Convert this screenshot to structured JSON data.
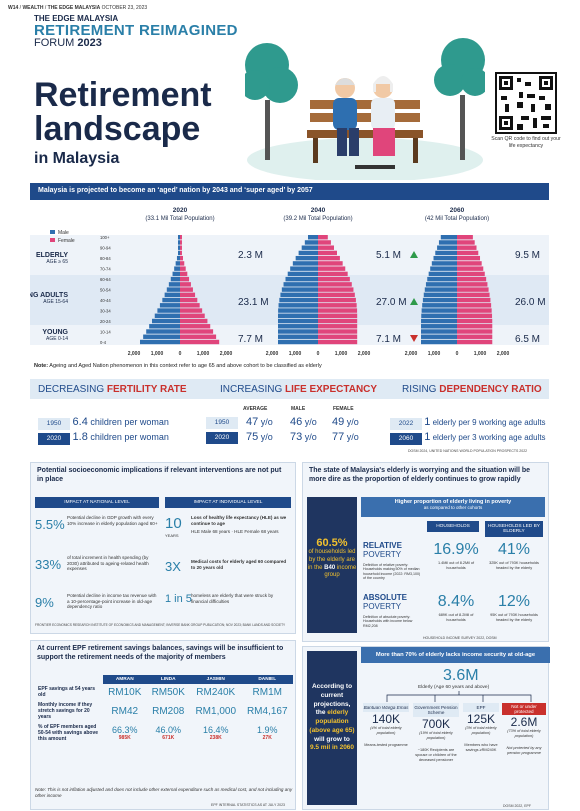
{
  "header": {
    "page": "W14",
    "section": "WEALTH",
    "brand": "THE EDGE MALAYSIA",
    "date": "OCTOBER 23, 2023"
  },
  "logo": {
    "brand": "THE EDGE MALAYSIA",
    "title": "RETIREMENT REIMAGINED",
    "forum": "FORUM",
    "year": "2023"
  },
  "title": {
    "line1": "Retirement",
    "line2": "landscape",
    "line3": "in Malaysia"
  },
  "qr": {
    "text": "Scan QR code to find out your life expectancy"
  },
  "banner": "Malaysia is projected to become an ‘aged’ nation by 2043 and ‘super aged’ by 2057",
  "pyramid": {
    "legend": [
      "Male",
      "Female"
    ],
    "colors": {
      "male": "#2f6fb0",
      "female": "#e0457b"
    },
    "age_ticks": [
      "100+",
      "90-94",
      "80-84",
      "70-74",
      "60-64",
      "50-54",
      "40-44",
      "30-34",
      "20-24",
      "10-14",
      "0-4"
    ],
    "groups": [
      {
        "name": "ELDERLY",
        "sub": "AGE ≥ 65"
      },
      {
        "name": "WORKING ADULTS",
        "sub": "AGE 15-64"
      },
      {
        "name": "YOUNG",
        "sub": "AGE 0-14"
      }
    ],
    "x_ticks": [
      "2,000",
      "1,000",
      "0",
      "1,000",
      "2,000"
    ],
    "years": [
      {
        "year": "2020",
        "pop": "(33.1 Mil Total Population)",
        "elderly": "2.3",
        "working": "23.1",
        "young": "7.7",
        "unit": "M",
        "e_trend": "",
        "w_trend": "",
        "y_trend": ""
      },
      {
        "year": "2040",
        "pop": "(39.2 Mil Total Population)",
        "elderly": "5.1",
        "working": "27.0",
        "young": "7.1",
        "unit": "M",
        "e_trend": "up",
        "w_trend": "up",
        "y_trend": "down"
      },
      {
        "year": "2060",
        "pop": "(42 Mil Total Population)",
        "elderly": "9.5",
        "working": "26.0",
        "young": "6.5",
        "unit": "M",
        "e_trend": "up",
        "w_trend": "down",
        "y_trend": "down"
      }
    ]
  },
  "note1": {
    "label": "Note:",
    "text": "Ageing and Aged Nation phenomenon in this context refer to age 65 and above cohort to be classified as elderly"
  },
  "trends": {
    "fertility": {
      "head_a": "DECREASING ",
      "head_b": "FERTILITY RATE",
      "rows": [
        {
          "year": "1950",
          "value": "6.4",
          "text": "children per woman"
        },
        {
          "year": "2020",
          "value": "1.8",
          "text": "children per woman"
        }
      ]
    },
    "life": {
      "head_a": "INCREASING ",
      "head_b": "LIFE EXPECTANCY",
      "cols": [
        "AVERAGE",
        "MALE",
        "FEMALE"
      ],
      "rows": [
        {
          "year": "1950",
          "v": [
            "47",
            "46",
            "49"
          ]
        },
        {
          "year": "2020",
          "v": [
            "75",
            "73",
            "77"
          ]
        }
      ],
      "unit": "y/o"
    },
    "dependency": {
      "head_a": "RISING ",
      "head_b": "DEPENDENCY RATIO",
      "rows": [
        {
          "year": "2022",
          "value": "1",
          "text": "elderly per 9 working age adults"
        },
        {
          "year": "2060",
          "value": "1",
          "text": "elderly per 3 working age adults"
        }
      ]
    },
    "source": "DOSM 2024, UNITED NATIONS WORLD POPULATION PROSPECTS 2022"
  },
  "implications": {
    "title": "Potential socioeconomic implications if relevant interventions are not put in place",
    "national_head": "IMPACT AT NATIONAL LEVEL",
    "individual_head": "IMPACT AT INDIVIDUAL LEVEL",
    "national": [
      {
        "value": "5.5%",
        "text": "Potential decline in GDP growth with every 10% increase in elderly population aged 60+"
      },
      {
        "value": "33%",
        "text": "of total increment in health spending (by 2030) attributed to ageing-related health expenses"
      },
      {
        "value": "9%",
        "text": "Potential decline in income tax revenue with a 10-percentage-point increase in old-age dependency ratio"
      }
    ],
    "individual": [
      {
        "value": "10",
        "sub": "YEARS",
        "text": "Loss of healthy life expectancy (HLE) as we continue to age",
        "extra": "HLE Male 68 years · HLE Female 68 years"
      },
      {
        "value": "3X",
        "text": "Medical costs for elderly aged 60 compared to 20 years old"
      },
      {
        "value": "1 in 5",
        "text": "homeless are elderly that were struck by financial difficulties"
      }
    ],
    "source": "FRONTIER ECONOMICS RESEARCH INSTITUTE OF ECONOMICS AND MANAGEMENT; INVERSE BANK GROUP PUBLICATION; NOV 2023; BANK LANDS AND SOCIETY"
  },
  "epf": {
    "title": "At current EPF retirement savings balances, savings will be insufficient to support the retirement needs of the majority of members",
    "names": [
      "AMRAN",
      "LINDA",
      "JASMIN",
      "DANIEL"
    ],
    "rows": [
      {
        "label": "EPF savings at 54 years old",
        "values": [
          "RM10K",
          "RM50K",
          "RM240K",
          "RM1M"
        ]
      },
      {
        "label": "Monthly income if they stretch savings for 20 years",
        "values": [
          "RM42",
          "RM208",
          "RM1,000",
          "RM4,167"
        ]
      },
      {
        "label": "% of EPF members aged 50-54 with savings above this amount",
        "values": [
          "66.3%",
          "46.0%",
          "16.4%",
          "1.9%"
        ],
        "sub": [
          "985K",
          "671K",
          "238K",
          "27K"
        ]
      }
    ],
    "note": "Note: This is not inflation adjusted and does not include other external expenditure such as medical cost, and not including any other income",
    "source": "EPF INTERNAL STATISTICS AS AT JULY 2023"
  },
  "elderly_state": {
    "title": "The state of Malaysia's elderly is worrying and the situation will be more dire as the proportion of elderly continues to grow rapidly",
    "left": {
      "pct": "60.5%",
      "text_a": "of households led by the elderly are in the",
      "text_b": "B40",
      "text_c": "income group"
    },
    "sub_title": "Higher proportion of elderly living in poverty",
    "sub_note": "as compared to other cohorts",
    "cols": [
      "HOUSEHOLDS",
      "HOUSEHOLDS LED BY ELDERLY"
    ],
    "rows": [
      {
        "name": "RELATIVE",
        "name2": "POVERTY",
        "def": "Definition of relative poverty: Households making 50% of median household income (2022: RM3,100) of the country",
        "v1": "16.9%",
        "d1": "1.4Mil out of 8.2Mil of households",
        "v2": "41%",
        "d2": "325K out of 793K households headed by the elderly"
      },
      {
        "name": "ABSOLUTE",
        "name2": "POVERTY",
        "def": "Definition of absolute poverty: Households with income below RM2,208",
        "v1": "8.4%",
        "d1": "689K out of 8.2Mil of households",
        "v2": "12%",
        "d2": "95K out of 793K households headed by the elderly"
      }
    ],
    "source": "HOUSEHOLD INCOME SURVEY 2022, DOSM"
  },
  "security": {
    "title": "More than 70% of elderly lacks income security at old-age",
    "left": {
      "a": "According to current projections, the",
      "b": "elderly population (above age 65)",
      "c": "will grow to",
      "d": "9.5 mil in 2060"
    },
    "total": "3.6M",
    "total_note": "Elderly (Age 60 years and above)",
    "cats": [
      {
        "name": "Bantuan Warga Emas",
        "value": "140K",
        "sub": "(4% of total elderly population)",
        "note": "Means-tested programme"
      },
      {
        "name": "Government Pension Scheme",
        "value": "700K",
        "sub": "(19% of total elderly population)",
        "note": "~180K Recipients are spouse or children of the deceased pensioner"
      },
      {
        "name": "EPF",
        "value": "125K",
        "sub": "(3% of total elderly population)",
        "note": "Members who have savings ≥RM240K"
      },
      {
        "name": "Not or under protected",
        "value": "2.6M",
        "sub": "(73% of total elderly population)",
        "note": "Not protected by any pension programme"
      }
    ],
    "source": "DOSM 2022, EPF"
  }
}
